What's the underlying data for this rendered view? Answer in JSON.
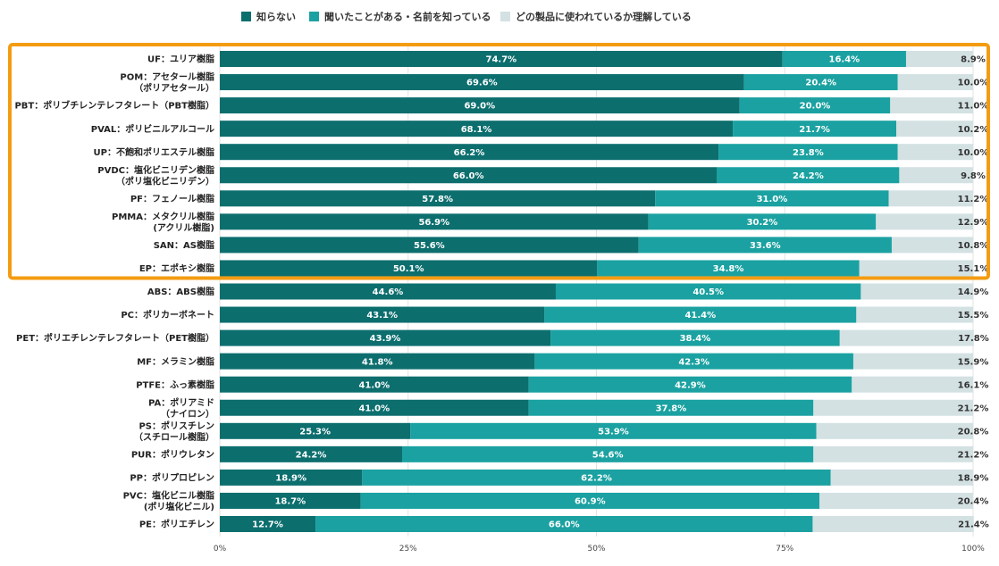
{
  "colors": {
    "series": [
      "#0d6e6e",
      "#1ba1a1",
      "#d3e1e3"
    ],
    "highlight": "#f39c12",
    "label_light": "#ffffff",
    "label_dark": "#333333"
  },
  "highlight_rows": [
    0,
    9
  ],
  "chart_data": {
    "type": "bar",
    "orientation": "horizontal",
    "stacked": true,
    "title": "",
    "xlabel": "",
    "ylabel": "",
    "xlim": [
      0,
      100
    ],
    "x_ticks": [
      "0%",
      "25%",
      "50%",
      "75%",
      "100%"
    ],
    "legend_position": "top",
    "grid": true,
    "categories": [
      [
        "UF：ユリア樹脂"
      ],
      [
        "POM：アセタール樹脂",
        "（ポリアセタール）"
      ],
      [
        "PBT：ポリブチレンテレフタレート（PBT樹脂）"
      ],
      [
        "PVAL：ポリビニルアルコール"
      ],
      [
        "UP：不飽和ポリエステル樹脂"
      ],
      [
        "PVDC：塩化ビニリデン樹脂",
        "（ポリ塩化ビニリデン）"
      ],
      [
        "PF：フェノール樹脂"
      ],
      [
        "PMMA：メタクリル樹脂",
        "(アクリル樹脂)"
      ],
      [
        "SAN：AS樹脂"
      ],
      [
        "EP：エポキシ樹脂"
      ],
      [
        "ABS：ABS樹脂"
      ],
      [
        "PC：ポリカーボネート"
      ],
      [
        "PET：ポリエチレンテレフタレート（PET樹脂）"
      ],
      [
        "MF：メラミン樹脂"
      ],
      [
        "PTFE：ふっ素樹脂"
      ],
      [
        "PA：ポリアミド",
        "（ナイロン）"
      ],
      [
        "PS：ポリスチレン",
        "（スチロール樹脂）"
      ],
      [
        "PUR：ポリウレタン"
      ],
      [
        "PP：ポリプロピレン"
      ],
      [
        "PVC：塩化ビニル樹脂",
        "(ポリ塩化ビニル)"
      ],
      [
        "PE：ポリエチレン"
      ]
    ],
    "series": [
      {
        "name": "知らない",
        "values": [
          74.7,
          69.6,
          69.0,
          68.1,
          66.2,
          66.0,
          57.8,
          56.9,
          55.6,
          50.1,
          44.6,
          43.1,
          43.9,
          41.8,
          41.0,
          41.0,
          25.3,
          24.2,
          18.9,
          18.7,
          12.7
        ]
      },
      {
        "name": "聞いたことがある・名前を知っている",
        "values": [
          16.4,
          20.4,
          20.0,
          21.7,
          23.8,
          24.2,
          31.0,
          30.2,
          33.6,
          34.8,
          40.5,
          41.4,
          38.4,
          42.3,
          42.9,
          37.8,
          53.9,
          54.6,
          62.2,
          60.9,
          66.0
        ]
      },
      {
        "name": "どの製品に使われているか理解している",
        "values": [
          8.9,
          10.0,
          11.0,
          10.2,
          10.0,
          9.8,
          11.2,
          12.9,
          10.8,
          15.1,
          14.9,
          15.5,
          17.8,
          15.9,
          16.1,
          21.2,
          20.8,
          21.2,
          18.9,
          20.4,
          21.4
        ]
      }
    ]
  }
}
